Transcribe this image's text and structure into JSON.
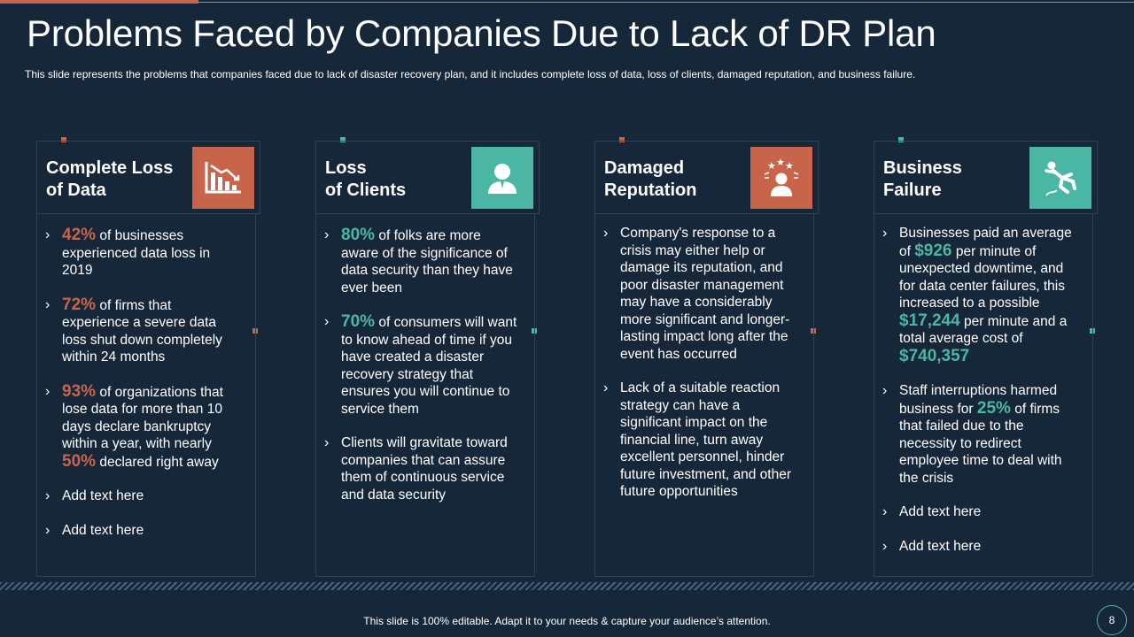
{
  "slide": {
    "title": "Problems Faced by Companies Due to Lack of DR Plan",
    "subtitle": "This slide represents the problems that companies faced due to lack of disaster recovery  plan, and it includes complete loss of data, loss of clients, damaged reputation, and business failure.",
    "footer": "This slide is 100% editable. Adapt it to your needs & capture your audience’s attention.",
    "page_number": "8"
  },
  "colors": {
    "background": "#17273a",
    "accent_red": "#c8644a",
    "accent_teal": "#4ab6a4",
    "border": "#2d4258"
  },
  "columns": [
    {
      "title": "Complete Loss\nof Data",
      "icon": "declining-chart-icon",
      "accent": "red",
      "bullets": [
        {
          "highlight": "42%",
          "text": " of businesses\nexperienced data loss in\n2019"
        },
        {
          "highlight": "72%",
          "text": " of firms that\nexperience a severe data\nloss shut down completely\nwithin 24 months"
        },
        {
          "highlight": "93%",
          "text": " of organizations that\nlose data for more than  10\ndays declare bankruptcy\nwithin a year,  with nearly\n",
          "highlight2": "50%",
          "text2": " declared right away"
        },
        {
          "text": "Add text here"
        },
        {
          "text": "Add text here"
        }
      ]
    },
    {
      "title": "Loss\nof Clients",
      "icon": "person-icon",
      "accent": "teal",
      "bullets": [
        {
          "highlight": "80%",
          "text": " of folks are more\naware of the significance of\ndata security than they have\never been"
        },
        {
          "highlight": "70%",
          "text": "  of consumers will want\nto know ahead of time if you\nhave created a disaster\nrecovery strategy that\nensures you will continue to\nservice them"
        },
        {
          "text": "Clients will gravitate toward\ncompanies that  can assure\nthem of continuous service\nand data security"
        }
      ]
    },
    {
      "title": "Damaged\nReputation",
      "icon": "person-with-stars-icon",
      "accent": "red",
      "bullets": [
        {
          "text": "Company's response to a\ncrisis may either help or\ndamage its reputation, and\npoor disaster management\nmay have a considerably\nmore significant and longer-\nlasting impact long after the\nevent has occurred"
        },
        {
          "text": "Lack of a suitable reaction\nstrategy can have a\nsignificant impact on the\nfinancial line, turn away\nexcellent personnel,  hinder\nfuture investment,  and other\nfuture opportunities"
        }
      ]
    },
    {
      "title": "Business\nFailure",
      "icon": "falling-person-icon",
      "accent": "teal",
      "bullets": [
        {
          "text": "Businesses paid an average\nof ",
          "highlight": "$926",
          "text2": " per minute of\nunexpected downtime, and\nfor data center failures, this\nincreased to a possible\n",
          "highlight2": "$17,244",
          "text3": " per minute and a\ntotal average cost of\n",
          "highlight3": "$740,357"
        },
        {
          "text": "Staff interruptions harmed\nbusiness for ",
          "highlight": "25%",
          "text2": " of firms\nthat failed due to the\nnecessity to redirect\nemployee time to deal with\nthe crisis"
        },
        {
          "text": "Add text here"
        },
        {
          "text": "Add text here"
        }
      ]
    }
  ]
}
